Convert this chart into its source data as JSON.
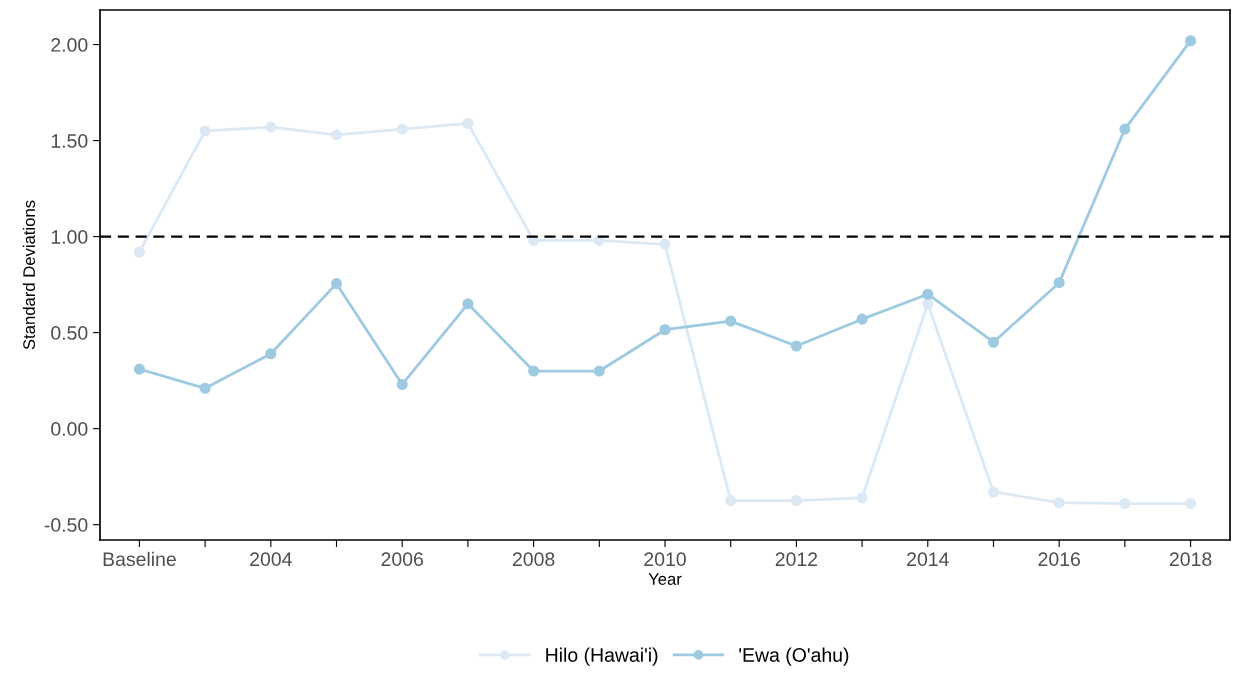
{
  "chart_data": {
    "type": "line",
    "xlabel": "Year",
    "ylabel": "Standard Deviations",
    "categories": [
      "Baseline",
      null,
      "2004",
      null,
      "2006",
      null,
      "2008",
      null,
      "2010",
      null,
      "2012",
      null,
      "2014",
      null,
      "2016",
      null,
      "2018"
    ],
    "series": [
      {
        "name": "Hilo (Hawai'i)",
        "color": "#dce9f5",
        "values": [
          0.92,
          1.55,
          1.57,
          1.53,
          1.56,
          1.59,
          0.98,
          0.98,
          0.96,
          -0.375,
          -0.375,
          -0.36,
          0.65,
          -0.33,
          -0.385,
          -0.39,
          -0.39
        ]
      },
      {
        "name": "'Ewa (O'ahu)",
        "color": "#9ecae1",
        "values": [
          0.31,
          0.21,
          0.39,
          0.755,
          0.23,
          0.65,
          0.3,
          0.3,
          0.515,
          0.56,
          0.43,
          0.57,
          0.7,
          0.45,
          0.76,
          1.56,
          2.02
        ]
      }
    ],
    "ylim": [
      -0.58,
      2.18
    ],
    "yticks": [
      {
        "value": -0.5,
        "label": "-0.50"
      },
      {
        "value": 0,
        "label": "0.00"
      },
      {
        "value": 0.5,
        "label": "0.50"
      },
      {
        "value": 1,
        "label": "1.00"
      },
      {
        "value": 1.5,
        "label": "1.50"
      },
      {
        "value": 2,
        "label": "2.00"
      }
    ],
    "ref_lines": [
      {
        "axis": "y",
        "value": 1,
        "color": "#000000",
        "line_style": "dashed"
      }
    ],
    "grid": false,
    "legend": "bottom",
    "marker": "circle",
    "line_style": "solid"
  }
}
